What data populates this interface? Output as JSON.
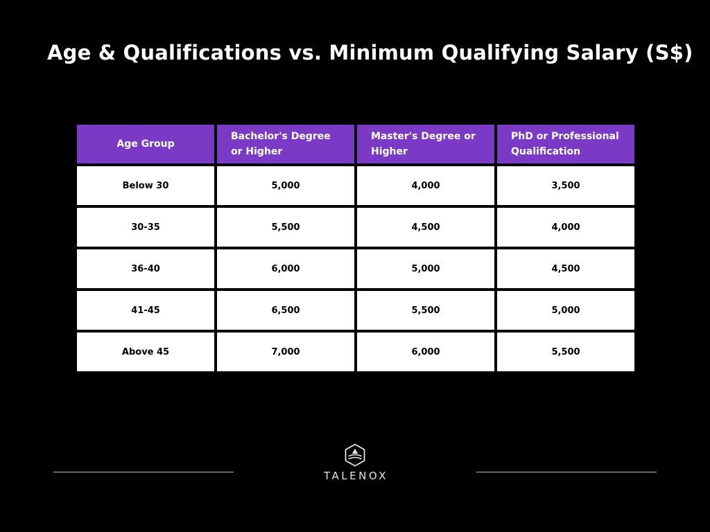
{
  "title": "Age & Qualifications vs. Minimum Qualifying Salary (S$)",
  "table": {
    "headers": [
      "Age Group",
      "Bachelor's Degree or Higher",
      "Master's Degree or Higher",
      "PhD or Professional Qualification"
    ],
    "rows": [
      [
        "Below 30",
        "5,000",
        "4,000",
        "3,500"
      ],
      [
        "30-35",
        "5,500",
        "4,500",
        "4,000"
      ],
      [
        "36-40",
        "6,000",
        "5,000",
        "4,500"
      ],
      [
        "41-45",
        "6,500",
        "5,500",
        "5,000"
      ],
      [
        "Above 45",
        "7,000",
        "6,000",
        "5,500"
      ]
    ]
  },
  "footer": {
    "brand": "TALENOX",
    "logo_icon": "talenox-hexagon-logo-icon"
  },
  "colors": {
    "background": "#000000",
    "header_fill": "#7b3ac6",
    "cell_fill": "#ffffff",
    "rule": "#bfbfbf"
  }
}
